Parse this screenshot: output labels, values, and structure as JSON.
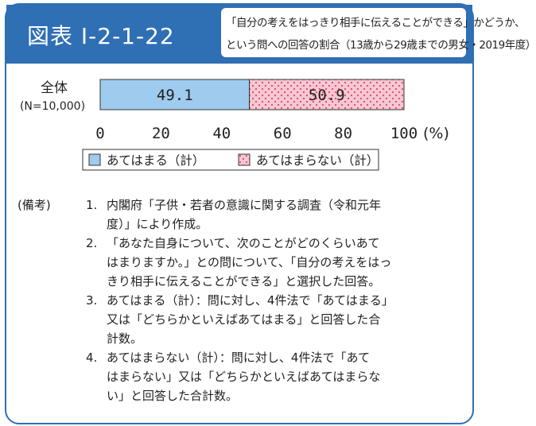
{
  "header": {
    "figure_label": "図表 Ⅰ-2-1-22",
    "title_line1": "「自分の考えをはっきり相手に伝えることができる」かどうか、",
    "title_line2": "という問への回答の割合（13歳から29歳までの男女・2019年度）"
  },
  "chart_data": {
    "type": "bar",
    "orientation": "horizontal",
    "stacked": true,
    "categories": [
      "全体"
    ],
    "category_sublabel": "(N=10,000)",
    "series": [
      {
        "name": "あてはまる（計）",
        "values": [
          49.1
        ],
        "value_label": "49.1",
        "color": "#9fcbee",
        "pattern": "solid"
      },
      {
        "name": "あてはまらない（計）",
        "values": [
          50.9
        ],
        "value_label": "50.9",
        "color": "#f6c7d4",
        "pattern": "dots"
      }
    ],
    "xlim": [
      0,
      100
    ],
    "xticks": [
      "0",
      "20",
      "40",
      "60",
      "80",
      "100"
    ],
    "x_unit": "(%)",
    "legend_position": "bottom"
  },
  "colors": {
    "accent": "#2f6fb4",
    "dot": "#e04a5a"
  },
  "notes": {
    "heading": "(備考)",
    "items": [
      {
        "num": "1.",
        "lines": [
          "内閣府「子供・若者の意識に関する調査（令和元年",
          "度）」により作成。"
        ]
      },
      {
        "num": "2.",
        "lines": [
          "「あなた自身について、次のことがどのくらいあて",
          "はまりますか。」との問について、「自分の考えをはっ",
          "きり相手に伝えることができる」と選択した回答。"
        ]
      },
      {
        "num": "3.",
        "lines": [
          "あてはまる（計）：問に対し、4件法で「あてはまる」",
          "又は「どちらかといえばあてはまる」と回答した合",
          "計数。"
        ]
      },
      {
        "num": "4.",
        "lines": [
          "あてはまらない（計）：問に対し、4件法で「あて",
          "はまらない」又は「どちらかといえばあてはまらな",
          "い」と回答した合計数。"
        ]
      }
    ]
  }
}
